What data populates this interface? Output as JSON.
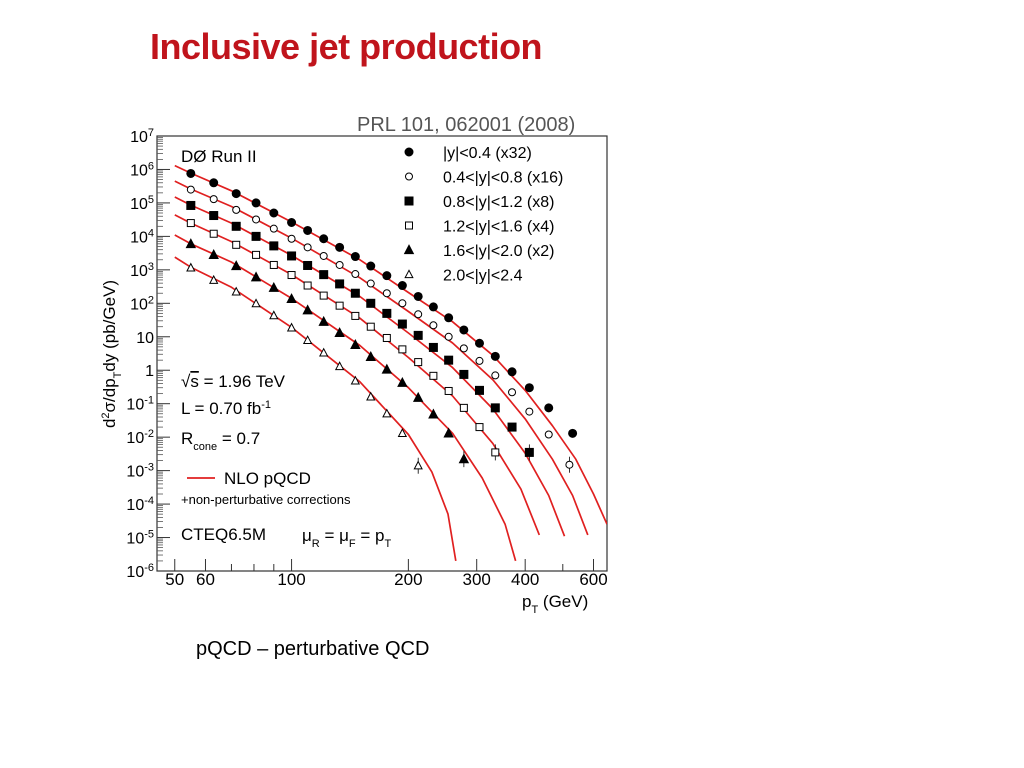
{
  "slide": {
    "title": "Inclusive jet production",
    "caption": "pQCD – perturbative QCD"
  },
  "colors": {
    "title": "#c0141c",
    "theory_curve": "#e02020",
    "points": "#000000"
  },
  "chart_data": {
    "type": "scatter",
    "reference": "PRL 101, 062001 (2008)",
    "experiment": "DØ Run II",
    "x_scale": "log",
    "y_scale": "log",
    "xlim": [
      45,
      650
    ],
    "ylim": [
      1e-06,
      10000000.0
    ],
    "xlabel_main": "p",
    "xlabel_sub": "T",
    "xlabel_unit": " (GeV)",
    "ylabel_parts": [
      "d",
      "2",
      "σ/dp",
      "T",
      "dy  (pb/GeV)"
    ],
    "x_ticks": [
      {
        "v": 50,
        "label": "50"
      },
      {
        "v": 60,
        "label": "60"
      },
      {
        "v": 100,
        "label": "100"
      },
      {
        "v": 200,
        "label": "200"
      },
      {
        "v": 300,
        "label": "300"
      },
      {
        "v": 400,
        "label": "400"
      },
      {
        "v": 600,
        "label": "600"
      }
    ],
    "y_ticks": [
      {
        "exp": 7,
        "base": "10",
        "sup": "7"
      },
      {
        "exp": 6,
        "base": "10",
        "sup": "6"
      },
      {
        "exp": 5,
        "base": "10",
        "sup": "5"
      },
      {
        "exp": 4,
        "base": "10",
        "sup": "4"
      },
      {
        "exp": 3,
        "base": "10",
        "sup": "3"
      },
      {
        "exp": 2,
        "base": "10",
        "sup": "2"
      },
      {
        "exp": 1,
        "base": "10",
        "sup": ""
      },
      {
        "exp": 0,
        "base": "1",
        "sup": ""
      },
      {
        "exp": -1,
        "base": "10",
        "sup": "-1"
      },
      {
        "exp": -2,
        "base": "10",
        "sup": "-2"
      },
      {
        "exp": -3,
        "base": "10",
        "sup": "-3"
      },
      {
        "exp": -4,
        "base": "10",
        "sup": "-4"
      },
      {
        "exp": -5,
        "base": "10",
        "sup": "-5"
      },
      {
        "exp": -6,
        "base": "10",
        "sup": "-6"
      }
    ],
    "legend_position": "top-right",
    "series": [
      {
        "name": "|y|<0.4 (x32)",
        "marker": "circle-filled",
        "points": [
          [
            55,
            760000.0
          ],
          [
            63,
            400000.0
          ],
          [
            72,
            190000.0
          ],
          [
            81,
            100000.0
          ],
          [
            90,
            50000.0
          ],
          [
            100,
            26000.0
          ],
          [
            110,
            15000.0
          ],
          [
            121,
            8500.0
          ],
          [
            133,
            4700.0
          ],
          [
            146,
            2500.0
          ],
          [
            160,
            1300.0
          ],
          [
            176,
            670
          ],
          [
            193,
            340
          ],
          [
            212,
            160
          ],
          [
            232,
            78
          ],
          [
            254,
            37
          ],
          [
            278,
            16
          ],
          [
            305,
            6.4
          ],
          [
            335,
            2.6
          ],
          [
            370,
            0.9
          ],
          [
            410,
            0.3
          ],
          [
            460,
            0.075
          ],
          [
            530,
            0.013
          ]
        ]
      },
      {
        "name": "0.4<|y|<0.8 (x16)",
        "marker": "circle-open",
        "points": [
          [
            55,
            250000.0
          ],
          [
            63,
            130000.0
          ],
          [
            72,
            62000.0
          ],
          [
            81,
            32000.0
          ],
          [
            90,
            17000.0
          ],
          [
            100,
            8500.0
          ],
          [
            110,
            4700.0
          ],
          [
            121,
            2600.0
          ],
          [
            133,
            1400.0
          ],
          [
            146,
            750
          ],
          [
            160,
            390
          ],
          [
            176,
            200
          ],
          [
            193,
            100
          ],
          [
            212,
            47
          ],
          [
            232,
            22
          ],
          [
            254,
            10
          ],
          [
            278,
            4.5
          ],
          [
            305,
            1.9
          ],
          [
            335,
            0.7
          ],
          [
            370,
            0.22
          ],
          [
            410,
            0.058
          ],
          [
            460,
            0.012
          ],
          [
            520,
            0.0015
          ]
        ]
      },
      {
        "name": "0.8<|y|<1.2 (x8)",
        "marker": "square-filled",
        "points": [
          [
            55,
            84000.0
          ],
          [
            63,
            42000.0
          ],
          [
            72,
            20000.0
          ],
          [
            81,
            10000.0
          ],
          [
            90,
            5200.0
          ],
          [
            100,
            2600.0
          ],
          [
            110,
            1350.0
          ],
          [
            121,
            720
          ],
          [
            133,
            380
          ],
          [
            146,
            200
          ],
          [
            160,
            100
          ],
          [
            176,
            50
          ],
          [
            193,
            24
          ],
          [
            212,
            11
          ],
          [
            232,
            4.8
          ],
          [
            254,
            2.0
          ],
          [
            278,
            0.75
          ],
          [
            305,
            0.25
          ],
          [
            335,
            0.075
          ],
          [
            370,
            0.02
          ],
          [
            410,
            0.0035
          ]
        ]
      },
      {
        "name": "1.2<|y|<1.6 (x4)",
        "marker": "square-open",
        "points": [
          [
            55,
            25000.0
          ],
          [
            63,
            12000.0
          ],
          [
            72,
            5600.0
          ],
          [
            81,
            2800.0
          ],
          [
            90,
            1400.0
          ],
          [
            100,
            700
          ],
          [
            110,
            340
          ],
          [
            121,
            170
          ],
          [
            133,
            85
          ],
          [
            146,
            42
          ],
          [
            160,
            20
          ],
          [
            176,
            9.2
          ],
          [
            193,
            4.2
          ],
          [
            212,
            1.75
          ],
          [
            232,
            0.68
          ],
          [
            254,
            0.24
          ],
          [
            278,
            0.075
          ],
          [
            305,
            0.02
          ],
          [
            335,
            0.0035
          ]
        ]
      },
      {
        "name": "1.6<|y|<2.0 (x2)",
        "marker": "triangle-filled",
        "points": [
          [
            55,
            5900.0
          ],
          [
            63,
            2800.0
          ],
          [
            72,
            1300.0
          ],
          [
            81,
            600
          ],
          [
            90,
            290
          ],
          [
            100,
            135
          ],
          [
            110,
            62
          ],
          [
            121,
            28
          ],
          [
            133,
            13
          ],
          [
            146,
            5.7
          ],
          [
            160,
            2.5
          ],
          [
            176,
            1.05
          ],
          [
            193,
            0.42
          ],
          [
            212,
            0.15
          ],
          [
            232,
            0.048
          ],
          [
            254,
            0.013
          ],
          [
            278,
            0.0022
          ]
        ]
      },
      {
        "name": "2.0<|y|<2.4",
        "marker": "triangle-open",
        "points": [
          [
            55,
            1150.0
          ],
          [
            63,
            490
          ],
          [
            72,
            220
          ],
          [
            81,
            98
          ],
          [
            90,
            43
          ],
          [
            100,
            18.5
          ],
          [
            110,
            7.8
          ],
          [
            121,
            3.3
          ],
          [
            133,
            1.3
          ],
          [
            146,
            0.48
          ],
          [
            160,
            0.16
          ],
          [
            176,
            0.05
          ],
          [
            193,
            0.013
          ],
          [
            212,
            0.0014
          ]
        ]
      }
    ],
    "curves": [
      {
        "points": [
          [
            50,
            1300000.0
          ],
          [
            55,
            780000.0
          ],
          [
            70,
            230000.0
          ],
          [
            100,
            27000.0
          ],
          [
            150,
            2000.0
          ],
          [
            200,
            210
          ],
          [
            260,
            28
          ],
          [
            330,
            2.8
          ],
          [
            400,
            0.25
          ],
          [
            470,
            0.022
          ],
          [
            540,
            0.0022
          ],
          [
            600,
            0.0002
          ],
          [
            650,
            2.5e-05
          ]
        ]
      },
      {
        "points": [
          [
            50,
            450000.0
          ],
          [
            55,
            260000.0
          ],
          [
            70,
            78000.0
          ],
          [
            100,
            8800.0
          ],
          [
            150,
            580
          ],
          [
            200,
            57
          ],
          [
            260,
            6.5
          ],
          [
            330,
            0.52
          ],
          [
            400,
            0.035
          ],
          [
            470,
            0.0022
          ],
          [
            530,
            0.00018
          ],
          [
            580,
            1.2e-05
          ]
        ]
      },
      {
        "points": [
          [
            50,
            150000.0
          ],
          [
            55,
            86000.0
          ],
          [
            70,
            25000.0
          ],
          [
            100,
            2700.0
          ],
          [
            150,
            160
          ],
          [
            200,
            13
          ],
          [
            260,
            1.2
          ],
          [
            330,
            0.07
          ],
          [
            400,
            0.0033
          ],
          [
            460,
            0.00018
          ],
          [
            505,
            1.1e-05
          ]
        ]
      },
      {
        "points": [
          [
            50,
            44000.0
          ],
          [
            55,
            25000.0
          ],
          [
            70,
            7000.0
          ],
          [
            100,
            720
          ],
          [
            150,
            36
          ],
          [
            200,
            2.4
          ],
          [
            260,
            0.17
          ],
          [
            330,
            0.0065
          ],
          [
            390,
            0.00028
          ],
          [
            435,
            1.2e-05
          ]
        ]
      },
      {
        "points": [
          [
            50,
            11000.0
          ],
          [
            55,
            6000.0
          ],
          [
            70,
            1700.0
          ],
          [
            100,
            140
          ],
          [
            150,
            5.5
          ],
          [
            200,
            0.3
          ],
          [
            260,
            0.013
          ],
          [
            310,
            0.0006
          ],
          [
            355,
            2.5e-05
          ],
          [
            378,
            2e-06
          ]
        ]
      },
      {
        "points": [
          [
            50,
            2400.0
          ],
          [
            55,
            1200.0
          ],
          [
            70,
            300
          ],
          [
            100,
            19
          ],
          [
            150,
            0.45
          ],
          [
            200,
            0.012
          ],
          [
            230,
            0.0009
          ],
          [
            253,
            5e-05
          ],
          [
            265,
            2e-06
          ]
        ]
      }
    ],
    "curve_start_x": 45,
    "annotations": {
      "sqrt_symbol": "√",
      "sqrt_arg": "s",
      "energy": " = 1.96 TeV",
      "lumi_main": "L = 0.70 fb",
      "lumi_sup": "-1",
      "rcone_main": "R",
      "rcone_sub": "cone",
      "rcone_value": " = 0.7",
      "nlo_label": "NLO pQCD",
      "np_corrections": "+non-perturbative corrections",
      "pdf": "CTEQ6.5M",
      "scale_parts": [
        "μ",
        "R",
        " = μ",
        "F",
        " = p",
        "T"
      ]
    }
  }
}
